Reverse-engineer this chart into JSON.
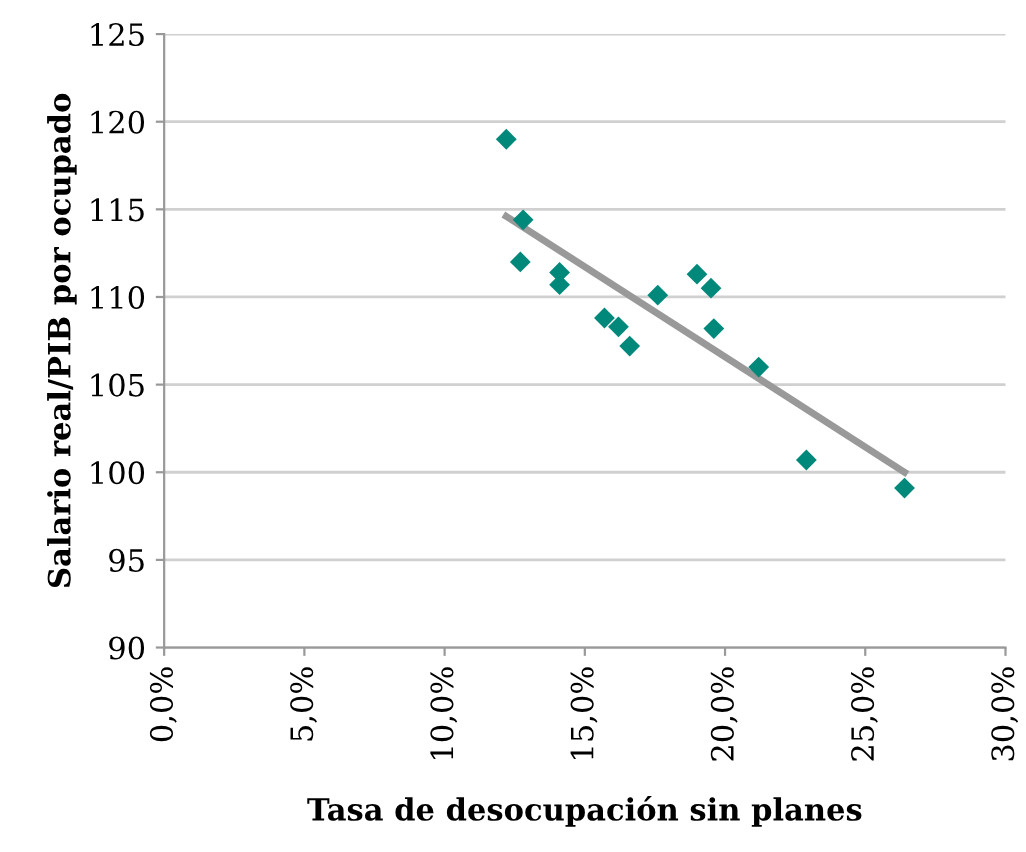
{
  "chart_data": {
    "type": "scatter",
    "xlabel": "Tasa de desocupación sin planes",
    "ylabel": "Salario real/PIB por ocupado",
    "xlim": [
      0,
      30
    ],
    "xticks": [
      {
        "value": 0,
        "label": "0,0%"
      },
      {
        "value": 5,
        "label": "5,0%"
      },
      {
        "value": 10,
        "label": "10,0%"
      },
      {
        "value": 15,
        "label": "15,0%"
      },
      {
        "value": 20,
        "label": "20,0%"
      },
      {
        "value": 25,
        "label": "25,0%"
      },
      {
        "value": 30,
        "label": "30,0%"
      }
    ],
    "ylim": [
      90,
      125
    ],
    "yticks": [
      90,
      95,
      100,
      105,
      110,
      115,
      120,
      125
    ],
    "grid": "y",
    "series": [
      {
        "marker": "diamond",
        "color": "#00897b",
        "x": [
          12.2,
          12.8,
          12.7,
          14.1,
          14.1,
          15.7,
          16.2,
          16.6,
          17.6,
          19.0,
          19.5,
          19.6,
          21.2,
          22.9,
          26.4
        ],
        "values": [
          119,
          114.4,
          112.0,
          111.4,
          110.7,
          108.8,
          108.3,
          107.2,
          110.1,
          111.3,
          110.5,
          108.2,
          106.0,
          100.7,
          99.1
        ]
      },
      {
        "type": "line",
        "marker": "none",
        "color": "#999999",
        "x": [
          12.2,
          26.4
        ],
        "values": [
          114.6,
          100.0
        ]
      }
    ]
  }
}
